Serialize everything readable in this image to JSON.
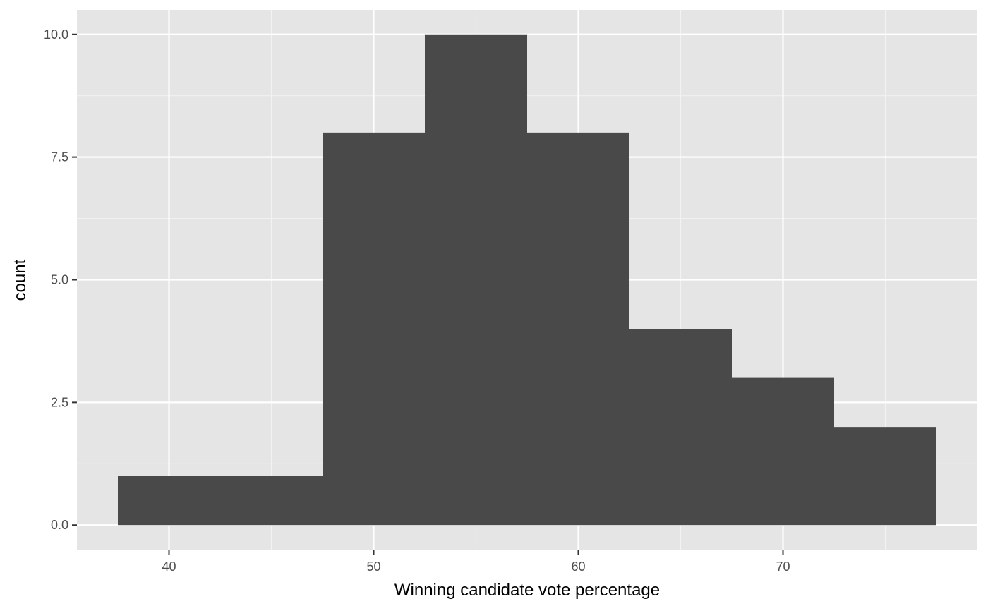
{
  "chart_data": {
    "type": "bar",
    "subtype": "histogram",
    "xlabel": "Winning candidate vote percentage",
    "ylabel": "count",
    "xlim": [
      35.5,
      79.5
    ],
    "ylim": [
      -0.5,
      10.5
    ],
    "grid": true,
    "bar_color": "#494949",
    "panel_color": "#E5E5E5",
    "bins": [
      {
        "x0": 37.5,
        "x1": 42.5,
        "count": 1
      },
      {
        "x0": 42.5,
        "x1": 47.5,
        "count": 1
      },
      {
        "x0": 47.5,
        "x1": 52.5,
        "count": 8
      },
      {
        "x0": 52.5,
        "x1": 57.5,
        "count": 10
      },
      {
        "x0": 57.5,
        "x1": 62.5,
        "count": 8
      },
      {
        "x0": 62.5,
        "x1": 67.5,
        "count": 4
      },
      {
        "x0": 67.5,
        "x1": 72.5,
        "count": 3
      },
      {
        "x0": 72.5,
        "x1": 77.5,
        "count": 2
      }
    ],
    "x_ticks": [
      {
        "value": 40,
        "label": "40"
      },
      {
        "value": 50,
        "label": "50"
      },
      {
        "value": 60,
        "label": "60"
      },
      {
        "value": 70,
        "label": "70"
      }
    ],
    "y_ticks": [
      {
        "value": 0,
        "label": "0.0"
      },
      {
        "value": 2.5,
        "label": "2.5"
      },
      {
        "value": 5,
        "label": "5.0"
      },
      {
        "value": 7.5,
        "label": "7.5"
      },
      {
        "value": 10,
        "label": "10.0"
      }
    ]
  }
}
